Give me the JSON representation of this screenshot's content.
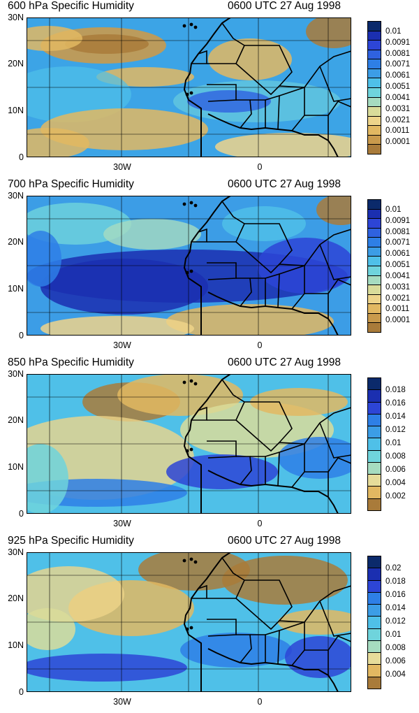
{
  "panels": [
    {
      "title": "600 hPa Specific Humidity",
      "time": "0600 UTC 27 Aug 1998",
      "y_ticks": [
        "30N",
        "20N",
        "10N",
        "0"
      ],
      "x_ticks": [
        "30W",
        "0"
      ],
      "colorbar_labels": [
        "0.01",
        "0.0091",
        "0.0081",
        "0.0071",
        "0.0061",
        "0.0051",
        "0.0041",
        "0.0031",
        "0.0021",
        "0.0011",
        "0.0001"
      ],
      "colorbar_colors": [
        "#0b2a6b",
        "#1b2fb0",
        "#2d45d6",
        "#2f62e0",
        "#2e7fe6",
        "#3c9de6",
        "#4fc0e8",
        "#6fd4dc",
        "#a6dcc0",
        "#d9dc9a",
        "#eed48a",
        "#e2b862",
        "#c99a4c",
        "#a97b3a"
      ]
    },
    {
      "title": "700 hPa Specific Humidity",
      "time": "0600 UTC 27 Aug 1998",
      "y_ticks": [
        "30N",
        "20N",
        "10N",
        "0"
      ],
      "x_ticks": [
        "30W",
        "0"
      ],
      "colorbar_labels": [
        "0.01",
        "0.0091",
        "0.0081",
        "0.0071",
        "0.0061",
        "0.0051",
        "0.0041",
        "0.0031",
        "0.0021",
        "0.0011",
        "0.0001"
      ],
      "colorbar_colors": [
        "#0b2a6b",
        "#1b2fb0",
        "#2d45d6",
        "#2f62e0",
        "#2e7fe6",
        "#3c9de6",
        "#4fc0e8",
        "#6fd4dc",
        "#a6dcc0",
        "#d9dc9a",
        "#eed48a",
        "#e2b862",
        "#c99a4c",
        "#a97b3a"
      ]
    },
    {
      "title": "850 hPa Specific Humidity",
      "time": "0600 UTC 27 Aug 1998",
      "y_ticks": [
        "30N",
        "20N",
        "10N",
        "0"
      ],
      "x_ticks": [
        "30W",
        "0"
      ],
      "colorbar_labels": [
        "0.018",
        "0.016",
        "0.014",
        "0.012",
        "0.01",
        "0.008",
        "0.006",
        "0.004",
        "0.002"
      ],
      "colorbar_colors": [
        "#0b2a6b",
        "#1b2fb0",
        "#2d45d6",
        "#2e7fe6",
        "#3c9de6",
        "#4fc0e8",
        "#6fd4dc",
        "#a6dcc0",
        "#e6dc9a",
        "#e2b862",
        "#a97b3a"
      ]
    },
    {
      "title": "925 hPa Specific Humidity",
      "time": "0600 UTC 27 Aug 1998",
      "y_ticks": [
        "30N",
        "20N",
        "10N",
        "0"
      ],
      "x_ticks": [
        "30W",
        "0"
      ],
      "colorbar_labels": [
        "0.02",
        "0.018",
        "0.016",
        "0.014",
        "0.012",
        "0.01",
        "0.008",
        "0.006",
        "0.004"
      ],
      "colorbar_colors": [
        "#0b2a6b",
        "#1b2fb0",
        "#2d45d6",
        "#2e7fe6",
        "#3c9de6",
        "#4fc0e8",
        "#6fd4dc",
        "#a6dcc0",
        "#e6dc9a",
        "#e2b862",
        "#a97b3a"
      ]
    }
  ]
}
